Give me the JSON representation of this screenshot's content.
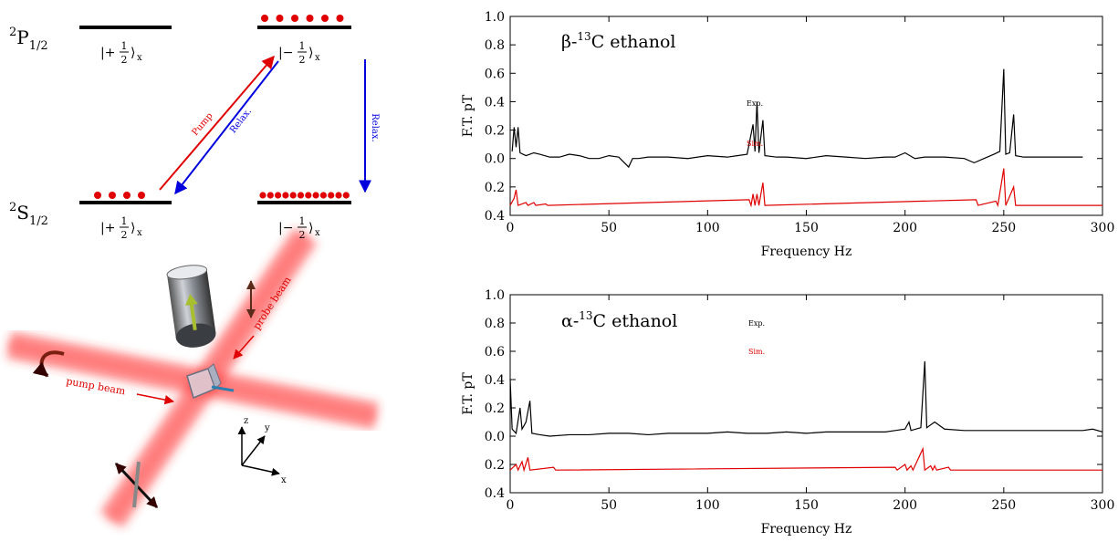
{
  "diagram": {
    "levels": [
      {
        "sup": "2",
        "term": "P",
        "sub": "1/2"
      },
      {
        "sup": "2",
        "term": "S",
        "sub": "1/2"
      }
    ],
    "kets": [
      {
        "prefix": "|+",
        "num": "1",
        "den": "2",
        "suffix": "⟩",
        "sub": "x"
      },
      {
        "prefix": "|−",
        "num": "1",
        "den": "2",
        "suffix": "⟩",
        "sub": "x"
      },
      {
        "prefix": "|+",
        "num": "1",
        "den": "2",
        "suffix": "⟩",
        "sub": "x"
      },
      {
        "prefix": "|−",
        "num": "1",
        "den": "2",
        "suffix": "⟩",
        "sub": "x"
      }
    ],
    "arrows": [
      "Pump",
      "Relax.",
      "Relax."
    ]
  },
  "setup": {
    "labels": [
      "pump beam",
      "probe beam"
    ],
    "axes": [
      "z",
      "y",
      "x"
    ]
  },
  "chart_data": [
    {
      "type": "line",
      "title_parts": [
        "β-",
        "13",
        "C ethanol"
      ],
      "xlabel": "Frequency  Hz",
      "ylabel": "F.T.  pT",
      "xlim": [
        0,
        300
      ],
      "xticks": [
        0,
        50,
        100,
        150,
        200,
        250,
        300
      ],
      "ylim": [
        -0.4,
        1.0
      ],
      "yticks": [
        {
          "value": -0.4,
          "label": "0.4"
        },
        {
          "value": -0.2,
          "label": "0.2"
        },
        {
          "value": 0,
          "label": "0.0"
        },
        0.2,
        0.4,
        0.6,
        0.8,
        {
          "value": 1.0,
          "label": "1.0"
        }
      ],
      "series": [
        {
          "name": "Exp.",
          "color": "#000000",
          "x": [
            1,
            2,
            3,
            4,
            5,
            8,
            12,
            15,
            20,
            25,
            30,
            35,
            40,
            45,
            50,
            55,
            60,
            62,
            65,
            70,
            80,
            90,
            100,
            110,
            115,
            120,
            123,
            124,
            125,
            126,
            128,
            129,
            135,
            140,
            150,
            160,
            170,
            180,
            190,
            195,
            200,
            205,
            210,
            220,
            230,
            235,
            240,
            245,
            248,
            250,
            251,
            253,
            255,
            256,
            260,
            270,
            280,
            290
          ],
          "values": [
            0.05,
            0.22,
            0.08,
            0.22,
            0.04,
            0.02,
            0.04,
            0.03,
            0.01,
            0.01,
            0.03,
            0.02,
            0.0,
            0.0,
            0.02,
            0.01,
            -0.06,
            0.0,
            0.0,
            0.01,
            0.01,
            0.0,
            0.02,
            0.01,
            0.02,
            0.03,
            0.24,
            0.05,
            0.4,
            0.04,
            0.27,
            0.02,
            0.01,
            0.01,
            0.0,
            0.02,
            0.01,
            0.0,
            0.01,
            0.01,
            0.04,
            0.0,
            0.01,
            0.01,
            0.0,
            -0.03,
            0.0,
            0.03,
            0.05,
            0.63,
            0.03,
            0.04,
            0.31,
            0.02,
            0.01,
            0.01,
            0.01,
            0.01
          ]
        },
        {
          "name": "Sim.",
          "color": "#e00000",
          "x": [
            0,
            2,
            3,
            4,
            8,
            9,
            12,
            13,
            18,
            19,
            121,
            122,
            123,
            124,
            125,
            126,
            128,
            129,
            236,
            237,
            246,
            247,
            250,
            251,
            255,
            256,
            300
          ],
          "values": [
            -0.33,
            -0.28,
            -0.22,
            -0.33,
            -0.31,
            -0.33,
            -0.31,
            -0.33,
            -0.32,
            -0.33,
            -0.29,
            -0.33,
            -0.25,
            -0.33,
            -0.25,
            -0.33,
            -0.17,
            -0.33,
            -0.29,
            -0.33,
            -0.3,
            -0.33,
            -0.07,
            -0.33,
            -0.2,
            -0.33,
            -0.33
          ]
        }
      ]
    },
    {
      "type": "line",
      "title_parts": [
        "α-",
        "13",
        "C ethanol"
      ],
      "xlabel": "Frequency  Hz",
      "ylabel": "F.T.  pT",
      "xlim": [
        0,
        300
      ],
      "xticks": [
        0,
        50,
        100,
        150,
        200,
        250,
        300
      ],
      "ylim": [
        -0.4,
        1.0
      ],
      "yticks": [
        {
          "value": -0.4,
          "label": "0.4"
        },
        {
          "value": -0.2,
          "label": "0.2"
        },
        {
          "value": 0,
          "label": "0.0"
        },
        0.2,
        0.4,
        0.6,
        0.8,
        {
          "value": 1.0,
          "label": "1.0"
        }
      ],
      "series": [
        {
          "name": "Exp.",
          "color": "#000000",
          "x": [
            0,
            1,
            3,
            5,
            6,
            8,
            10,
            11,
            15,
            20,
            30,
            40,
            50,
            60,
            70,
            80,
            90,
            100,
            110,
            120,
            130,
            140,
            150,
            160,
            170,
            180,
            190,
            195,
            200,
            202,
            203,
            208,
            210,
            211,
            215,
            220,
            230,
            240,
            250,
            260,
            270,
            280,
            290,
            295,
            300
          ],
          "values": [
            0.4,
            0.05,
            0.02,
            0.2,
            0.05,
            0.1,
            0.25,
            0.02,
            0.01,
            0.0,
            0.01,
            0.01,
            0.02,
            0.02,
            0.01,
            0.02,
            0.02,
            0.02,
            0.03,
            0.02,
            0.02,
            0.03,
            0.02,
            0.03,
            0.03,
            0.03,
            0.03,
            0.04,
            0.05,
            0.1,
            0.04,
            0.06,
            0.53,
            0.06,
            0.1,
            0.05,
            0.04,
            0.04,
            0.04,
            0.04,
            0.04,
            0.04,
            0.04,
            0.05,
            0.03
          ]
        },
        {
          "name": "Sim.",
          "color": "#e00000",
          "x": [
            0,
            3,
            4,
            6,
            7,
            9,
            10,
            22,
            23,
            195,
            196,
            200,
            201,
            203,
            204,
            209,
            210,
            213,
            214,
            215,
            216,
            222,
            223,
            300
          ],
          "values": [
            -0.24,
            -0.2,
            -0.24,
            -0.18,
            -0.24,
            -0.15,
            -0.24,
            -0.22,
            -0.24,
            -0.22,
            -0.24,
            -0.2,
            -0.24,
            -0.21,
            -0.24,
            -0.09,
            -0.24,
            -0.21,
            -0.24,
            -0.21,
            -0.24,
            -0.22,
            -0.24,
            -0.24
          ]
        }
      ]
    }
  ]
}
